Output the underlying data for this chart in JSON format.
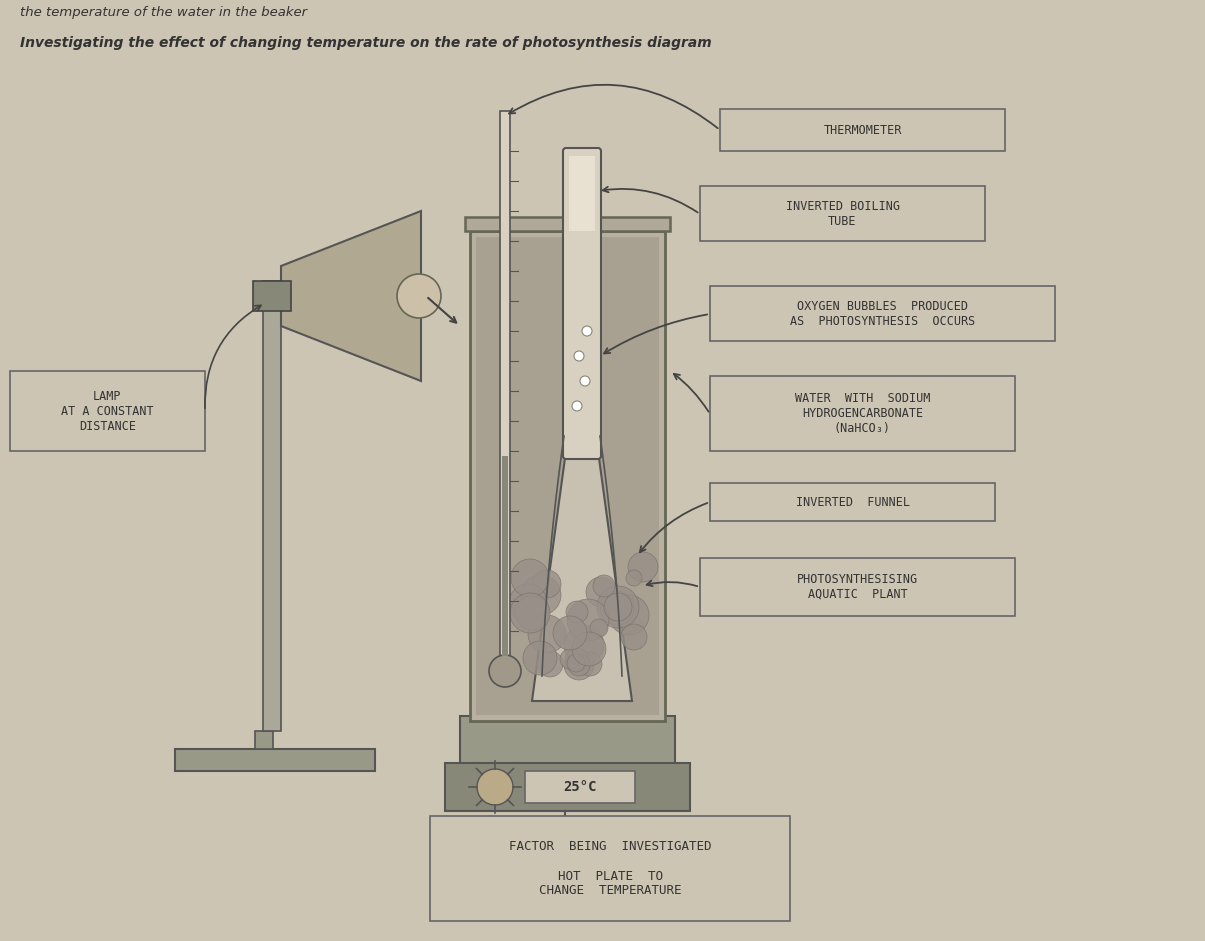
{
  "bg_color": "#cdc5b4",
  "title_top": "the temperature of the water in the beaker",
  "title_main": "Investigating the effect of changing temperature on the rate of photosynthesis diagram",
  "label_thermometer": "THERMOMETER",
  "label_inverted_boiling": "INVERTED BOILING\nTUBE",
  "label_oxygen": "OXYGEN BUBBLES  PRODUCED\nAS  PHOTOSYNTHESIS  OCCURS",
  "label_water": "WATER  WITH  SODIUM\nHYDROGENCARBONATE\n(NaHCO₃)",
  "label_inverted_funnel": "INVERTED  FUNNEL",
  "label_plant": "PHOTOSYNTHESISING\nAQUATIC  PLANT",
  "label_lamp": "LAMP\nAT A CONSTANT\nDISTANCE",
  "label_temp": "25°C",
  "label_factor": "FACTOR  BEING  INVESTIGATED\n\nHOT  PLATE  TO\nCHANGE  TEMPERATURE",
  "text_color": "#333333",
  "box_fill": "#cdc5b4",
  "box_edge": "#666666",
  "lamp_fill": "#b8b0a0",
  "water_fill": "#aaa090",
  "gray_dark": "#808080",
  "gray_med": "#a0a090"
}
